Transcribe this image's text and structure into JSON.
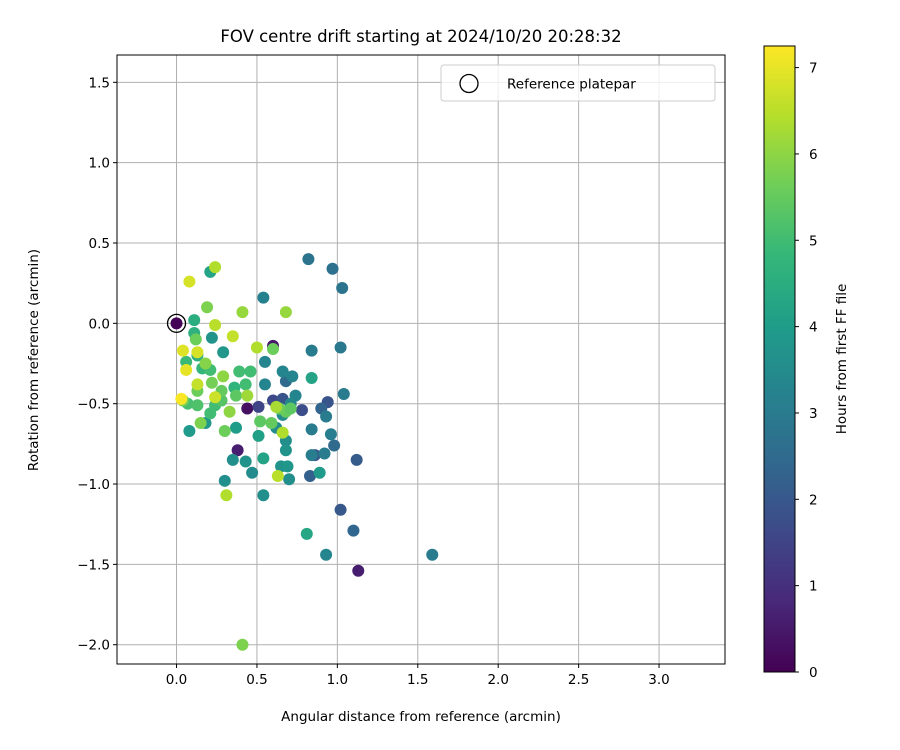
{
  "chart_data": {
    "type": "scatter",
    "title": "FOV centre drift starting at 2024/10/20 20:28:32",
    "xlabel": "Angular distance from reference (arcmin)",
    "ylabel": "Rotation from reference (arcmin)",
    "xlim": [
      -0.37,
      3.41
    ],
    "ylim": [
      -2.12,
      1.67
    ],
    "xticks": [
      0.0,
      0.5,
      1.0,
      1.5,
      2.0,
      2.5,
      3.0
    ],
    "xtick_labels": [
      "0.0",
      "0.5",
      "1.0",
      "1.5",
      "2.0",
      "2.5",
      "3.0"
    ],
    "yticks": [
      1.5,
      1.0,
      0.5,
      0.0,
      -0.5,
      -1.0,
      -1.5,
      -2.0
    ],
    "ytick_labels": [
      "1.5",
      "1.0",
      "0.5",
      "0.0",
      "−0.5",
      "−1.0",
      "−1.5",
      "−2.0"
    ],
    "grid": true,
    "legend": {
      "position": "top-right",
      "entries": [
        "Reference platepar"
      ]
    },
    "reference_point": {
      "x": 0.0,
      "y": 0.0,
      "label": "Reference platepar"
    },
    "colorbar": {
      "label": "Hours from first FF file",
      "range": [
        0,
        7.25
      ],
      "ticks": [
        0,
        1,
        2,
        3,
        4,
        5,
        6,
        7
      ],
      "tick_labels": [
        "0",
        "1",
        "2",
        "3",
        "4",
        "5",
        "6",
        "7"
      ],
      "colormap": [
        "#440154",
        "#482878",
        "#3e4989",
        "#31688e",
        "#26828e",
        "#1f9e89",
        "#35b779",
        "#6ece58",
        "#b5de2b",
        "#fde725"
      ]
    },
    "points": [
      {
        "x": 0.0,
        "y": 0.0,
        "hours": 0.05
      },
      {
        "x": 0.44,
        "y": -0.53,
        "hours": 0.3
      },
      {
        "x": 0.38,
        "y": -0.79,
        "hours": 0.6
      },
      {
        "x": 1.13,
        "y": -1.54,
        "hours": 0.6
      },
      {
        "x": 0.6,
        "y": -0.14,
        "hours": 0.5
      },
      {
        "x": 0.51,
        "y": -0.52,
        "hours": 1.5
      },
      {
        "x": 0.6,
        "y": -0.48,
        "hours": 1.6
      },
      {
        "x": 0.66,
        "y": -0.47,
        "hours": 1.9
      },
      {
        "x": 0.78,
        "y": -0.54,
        "hours": 1.7
      },
      {
        "x": 0.86,
        "y": -0.82,
        "hours": 2.0
      },
      {
        "x": 0.94,
        "y": -0.49,
        "hours": 1.9
      },
      {
        "x": 1.12,
        "y": -0.85,
        "hours": 2.1
      },
      {
        "x": 1.02,
        "y": -1.16,
        "hours": 2.0
      },
      {
        "x": 1.1,
        "y": -1.29,
        "hours": 2.4
      },
      {
        "x": 0.83,
        "y": -0.95,
        "hours": 2.2
      },
      {
        "x": 0.9,
        "y": -0.53,
        "hours": 2.3
      },
      {
        "x": 0.68,
        "y": -0.36,
        "hours": 2.5
      },
      {
        "x": 0.98,
        "y": -0.76,
        "hours": 2.5
      },
      {
        "x": 0.82,
        "y": 0.4,
        "hours": 2.8
      },
      {
        "x": 0.97,
        "y": 0.34,
        "hours": 2.7
      },
      {
        "x": 1.03,
        "y": 0.22,
        "hours": 2.8
      },
      {
        "x": 1.02,
        "y": -0.15,
        "hours": 2.9
      },
      {
        "x": 0.84,
        "y": -0.17,
        "hours": 3.0
      },
      {
        "x": 1.04,
        "y": -0.44,
        "hours": 3.0
      },
      {
        "x": 0.93,
        "y": -0.58,
        "hours": 3.0
      },
      {
        "x": 0.84,
        "y": -0.66,
        "hours": 3.0
      },
      {
        "x": 0.96,
        "y": -0.69,
        "hours": 3.1
      },
      {
        "x": 0.92,
        "y": -0.81,
        "hours": 3.0
      },
      {
        "x": 0.84,
        "y": -0.82,
        "hours": 3.1
      },
      {
        "x": 1.59,
        "y": -1.44,
        "hours": 3.0
      },
      {
        "x": 0.93,
        "y": -1.44,
        "hours": 3.3
      },
      {
        "x": 0.54,
        "y": 0.16,
        "hours": 3.2
      },
      {
        "x": 0.55,
        "y": -0.24,
        "hours": 3.3
      },
      {
        "x": 0.66,
        "y": -0.3,
        "hours": 3.3
      },
      {
        "x": 0.72,
        "y": -0.33,
        "hours": 3.3
      },
      {
        "x": 0.55,
        "y": -0.38,
        "hours": 3.3
      },
      {
        "x": 0.74,
        "y": -0.45,
        "hours": 3.3
      },
      {
        "x": 0.71,
        "y": -0.5,
        "hours": 3.4
      },
      {
        "x": 0.66,
        "y": -0.57,
        "hours": 3.5
      },
      {
        "x": 0.62,
        "y": -0.65,
        "hours": 3.5
      },
      {
        "x": 0.68,
        "y": -0.73,
        "hours": 3.6
      },
      {
        "x": 0.68,
        "y": -0.79,
        "hours": 3.7
      },
      {
        "x": 0.65,
        "y": -0.89,
        "hours": 3.7
      },
      {
        "x": 0.69,
        "y": -0.89,
        "hours": 3.8
      },
      {
        "x": 0.7,
        "y": -0.97,
        "hours": 3.6
      },
      {
        "x": 0.35,
        "y": -0.85,
        "hours": 3.6
      },
      {
        "x": 0.43,
        "y": -0.86,
        "hours": 3.7
      },
      {
        "x": 0.47,
        "y": -0.93,
        "hours": 3.5
      },
      {
        "x": 0.3,
        "y": -0.98,
        "hours": 3.6
      },
      {
        "x": 0.54,
        "y": -1.07,
        "hours": 3.6
      },
      {
        "x": 0.89,
        "y": -0.93,
        "hours": 3.9
      },
      {
        "x": 0.22,
        "y": -0.09,
        "hours": 3.7
      },
      {
        "x": 0.29,
        "y": -0.18,
        "hours": 3.8
      },
      {
        "x": 0.18,
        "y": -0.62,
        "hours": 3.8
      },
      {
        "x": 0.08,
        "y": -0.67,
        "hours": 3.9
      },
      {
        "x": 0.37,
        "y": -0.65,
        "hours": 4.0
      },
      {
        "x": 0.51,
        "y": -0.7,
        "hours": 4.1
      },
      {
        "x": 0.54,
        "y": -0.84,
        "hours": 4.2
      },
      {
        "x": 0.84,
        "y": -0.34,
        "hours": 4.2
      },
      {
        "x": 0.81,
        "y": -1.31,
        "hours": 4.3
      },
      {
        "x": 0.21,
        "y": 0.32,
        "hours": 4.2
      },
      {
        "x": 0.11,
        "y": 0.02,
        "hours": 4.5
      },
      {
        "x": 0.11,
        "y": -0.06,
        "hours": 4.6
      },
      {
        "x": 0.13,
        "y": -0.2,
        "hours": 4.6
      },
      {
        "x": 0.16,
        "y": -0.28,
        "hours": 4.8
      },
      {
        "x": 0.06,
        "y": -0.24,
        "hours": 4.9
      },
      {
        "x": 0.21,
        "y": -0.29,
        "hours": 5.0
      },
      {
        "x": 0.36,
        "y": -0.4,
        "hours": 4.7
      },
      {
        "x": 0.39,
        "y": -0.3,
        "hours": 5.0
      },
      {
        "x": 0.46,
        "y": -0.3,
        "hours": 5.0
      },
      {
        "x": 0.43,
        "y": -0.38,
        "hours": 5.0
      },
      {
        "x": 0.21,
        "y": -0.56,
        "hours": 5.0
      },
      {
        "x": 0.24,
        "y": -0.51,
        "hours": 5.0
      },
      {
        "x": 0.07,
        "y": -0.5,
        "hours": 5.1
      },
      {
        "x": 0.13,
        "y": -0.51,
        "hours": 5.2
      },
      {
        "x": 0.28,
        "y": -0.48,
        "hours": 5.3
      },
      {
        "x": 0.37,
        "y": -0.45,
        "hours": 5.4
      },
      {
        "x": 0.52,
        "y": -0.61,
        "hours": 5.4
      },
      {
        "x": 0.59,
        "y": -0.62,
        "hours": 5.5
      },
      {
        "x": 0.68,
        "y": -0.55,
        "hours": 5.5
      },
      {
        "x": 0.64,
        "y": -0.53,
        "hours": 5.6
      },
      {
        "x": 0.71,
        "y": -0.53,
        "hours": 5.4
      },
      {
        "x": 0.6,
        "y": -0.16,
        "hours": 5.6
      },
      {
        "x": 0.3,
        "y": -0.67,
        "hours": 5.6
      },
      {
        "x": 0.28,
        "y": -0.42,
        "hours": 5.5
      },
      {
        "x": 0.13,
        "y": -0.42,
        "hours": 5.6
      },
      {
        "x": 0.12,
        "y": -0.1,
        "hours": 5.6
      },
      {
        "x": 0.19,
        "y": 0.1,
        "hours": 5.8
      },
      {
        "x": 0.04,
        "y": -0.48,
        "hours": 5.7
      },
      {
        "x": 0.22,
        "y": -0.37,
        "hours": 5.7
      },
      {
        "x": 0.15,
        "y": -0.62,
        "hours": 5.8
      },
      {
        "x": 0.41,
        "y": -2.0,
        "hours": 5.8
      },
      {
        "x": 0.18,
        "y": -0.25,
        "hours": 5.9
      },
      {
        "x": 0.29,
        "y": -0.33,
        "hours": 6.0
      },
      {
        "x": 0.33,
        "y": -0.55,
        "hours": 6.0
      },
      {
        "x": 0.41,
        "y": 0.07,
        "hours": 6.1
      },
      {
        "x": 0.68,
        "y": 0.07,
        "hours": 6.1
      },
      {
        "x": 0.44,
        "y": -0.45,
        "hours": 6.2
      },
      {
        "x": 0.5,
        "y": -0.15,
        "hours": 6.4
      },
      {
        "x": 0.62,
        "y": -0.52,
        "hours": 6.3
      },
      {
        "x": 0.66,
        "y": -0.68,
        "hours": 6.4
      },
      {
        "x": 0.31,
        "y": -1.07,
        "hours": 6.4
      },
      {
        "x": 0.63,
        "y": -0.95,
        "hours": 6.5
      },
      {
        "x": 0.24,
        "y": 0.35,
        "hours": 6.4
      },
      {
        "x": 0.24,
        "y": -0.01,
        "hours": 6.5
      },
      {
        "x": 0.35,
        "y": -0.08,
        "hours": 6.6
      },
      {
        "x": 0.13,
        "y": -0.38,
        "hours": 6.6
      },
      {
        "x": 0.24,
        "y": -0.46,
        "hours": 6.7
      },
      {
        "x": 0.08,
        "y": 0.26,
        "hours": 6.8
      },
      {
        "x": 0.04,
        "y": -0.17,
        "hours": 6.9
      },
      {
        "x": 0.13,
        "y": -0.18,
        "hours": 6.8
      },
      {
        "x": 0.06,
        "y": -0.29,
        "hours": 7.0
      },
      {
        "x": 0.03,
        "y": -0.47,
        "hours": 7.2
      }
    ]
  }
}
